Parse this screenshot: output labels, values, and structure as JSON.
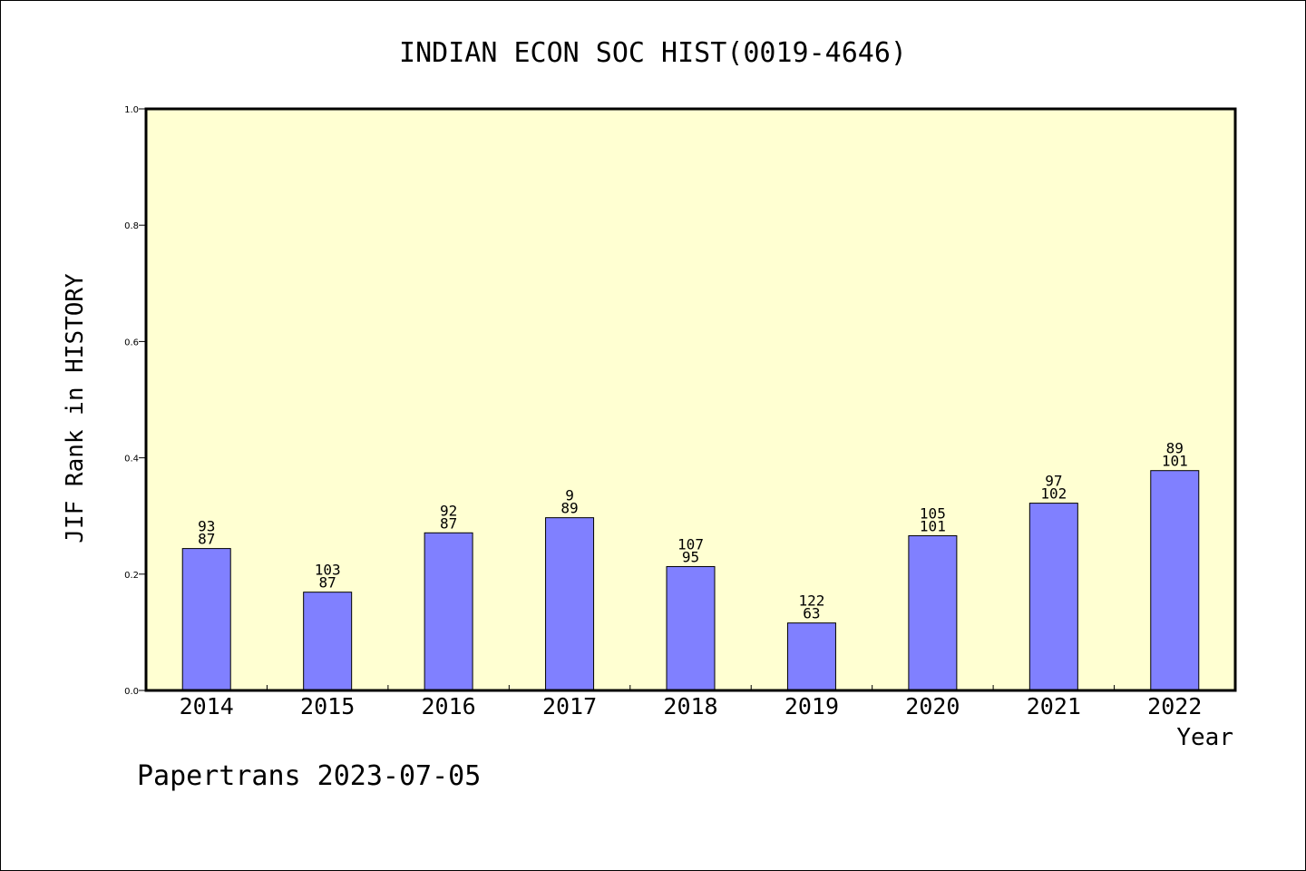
{
  "chart_data": {
    "type": "bar",
    "title": "INDIAN ECON SOC HIST(0019-4646)",
    "xlabel": "Year",
    "ylabel": "JIF Rank in HISTORY",
    "ylim": [
      0,
      1.0
    ],
    "yticks": [
      "0.0",
      "0.2",
      "0.4",
      "0.6",
      "0.8",
      "1.0"
    ],
    "grid": false,
    "categories": [
      "2014",
      "2015",
      "2016",
      "2017",
      "2018",
      "2019",
      "2020",
      "2021",
      "2022"
    ],
    "values": [
      0.244,
      0.169,
      0.271,
      0.297,
      0.213,
      0.116,
      0.266,
      0.322,
      0.378
    ],
    "rank_labels": [
      "93",
      "103",
      "92",
      "9",
      "107",
      "122",
      "105",
      "97",
      "89"
    ],
    "total_labels": [
      "87",
      "87",
      "87",
      "89",
      "95",
      "63",
      "101",
      "102",
      "101"
    ],
    "colors": {
      "plot_background": "#ffffd2",
      "bar_fill": "#8080ff",
      "bar_stroke": "#000000"
    }
  },
  "footer": {
    "text": "Papertrans 2023-07-05"
  }
}
